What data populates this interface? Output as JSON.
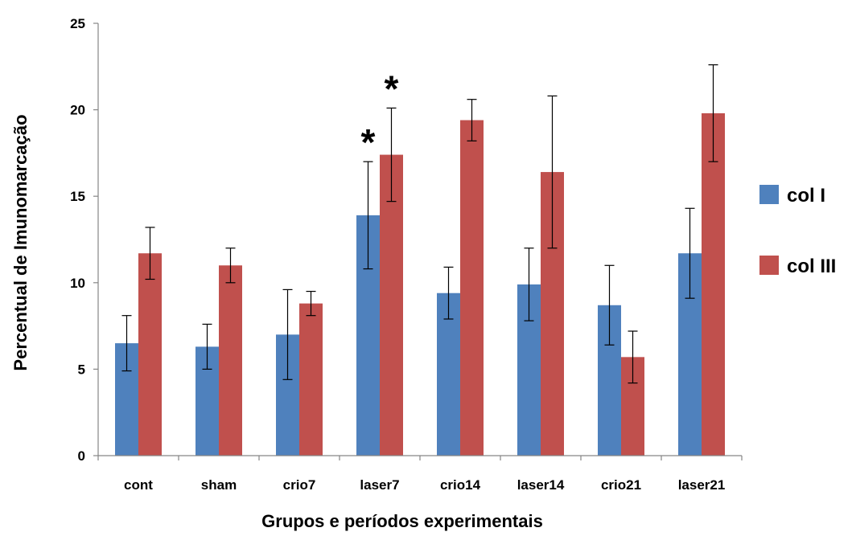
{
  "chart_data": {
    "type": "bar",
    "title": "",
    "xlabel": "Grupos e períodos experimentais",
    "ylabel": "Percentual de Imunomarcação",
    "ylim": [
      0,
      25
    ],
    "yticks": [
      0,
      5,
      10,
      15,
      20,
      25
    ],
    "grid": false,
    "legend_position": "right",
    "categories": [
      "cont",
      "sham",
      "crio7",
      "laser7",
      "crio14",
      "laser14",
      "crio21",
      "laser21"
    ],
    "series": [
      {
        "name": "col I",
        "color": "#4F81BD",
        "values": [
          6.5,
          6.3,
          7.0,
          13.9,
          9.4,
          9.9,
          8.7,
          11.7
        ],
        "error": [
          1.6,
          1.3,
          2.6,
          3.1,
          1.5,
          2.1,
          2.3,
          2.6
        ]
      },
      {
        "name": "col III",
        "color": "#C0504D",
        "values": [
          11.7,
          11.0,
          8.8,
          17.4,
          19.4,
          16.4,
          5.7,
          19.8
        ],
        "error": [
          1.5,
          1.0,
          0.7,
          2.7,
          1.2,
          4.4,
          1.5,
          2.8
        ]
      }
    ],
    "annotations": [
      {
        "text": "*",
        "category": "laser7",
        "series": "col I"
      },
      {
        "text": "*",
        "category": "laser7",
        "series": "col III"
      }
    ]
  }
}
